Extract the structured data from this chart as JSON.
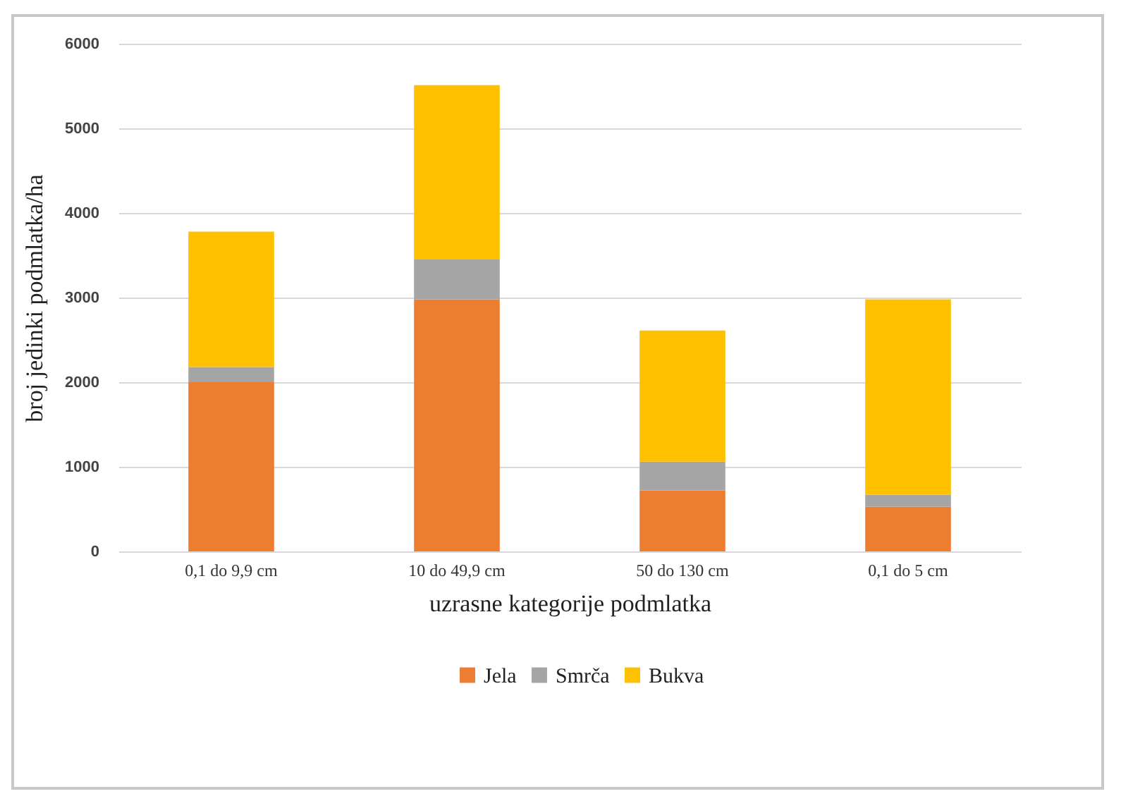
{
  "chart_data": {
    "type": "bar",
    "stacked": true,
    "xlabel": "uzrasne kategorije podmlatka",
    "ylabel": "broj jedinki podmlatka/ha",
    "categories": [
      "0,1  do 9,9 cm",
      "10  do 49,9 cm",
      "50  do 130 cm",
      "0,1  do 5 cm"
    ],
    "series": [
      {
        "name": "Jela",
        "color": "#ed7d31",
        "values": [
          2000,
          2980,
          720,
          530
        ]
      },
      {
        "name": "Smrča",
        "color": "#a5a5a5",
        "values": [
          180,
          470,
          340,
          140
        ]
      },
      {
        "name": "Bukva",
        "color": "#ffc000",
        "values": [
          1600,
          2060,
          1550,
          2310
        ]
      }
    ],
    "ylim": [
      0,
      6000
    ],
    "yticks": [
      0,
      1000,
      2000,
      3000,
      4000,
      5000,
      6000
    ],
    "grid": "y",
    "legend": "bottom"
  }
}
